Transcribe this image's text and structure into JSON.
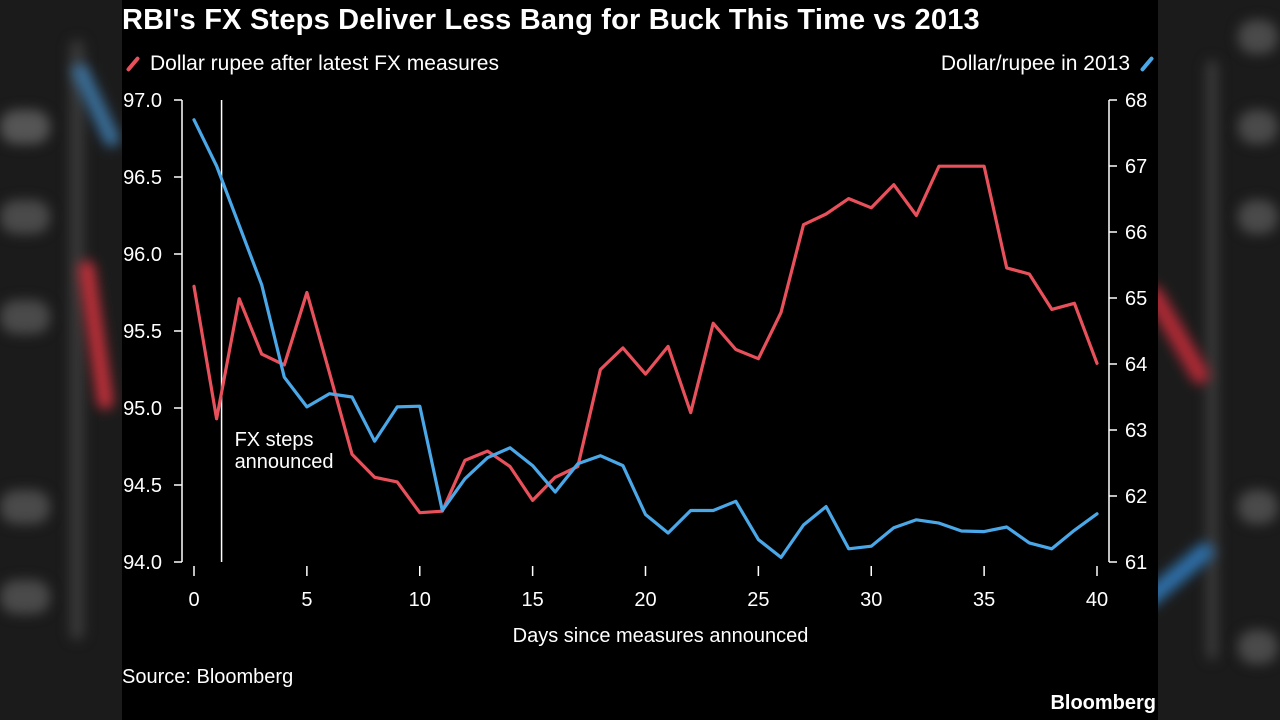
{
  "header": {
    "title": "RBI's FX Steps Deliver Less Bang for Buck This Time vs 2013"
  },
  "footer": {
    "source": "Source: Bloomberg",
    "brand": "Bloomberg"
  },
  "colors": {
    "background": "#000000",
    "series_red": "#e8505b",
    "series_blue": "#4aa8e8",
    "text": "#ffffff"
  },
  "chart_data": {
    "type": "line",
    "xlabel": "Days since measures announced",
    "xlim": [
      0,
      40
    ],
    "xticks": [
      0,
      5,
      10,
      15,
      20,
      25,
      30,
      35,
      40
    ],
    "left_axis": {
      "ylim": [
        94.0,
        97.0
      ],
      "ticks": [
        "94.0",
        "94.5",
        "95.0",
        "95.5",
        "96.0",
        "96.5",
        "97.0"
      ]
    },
    "right_axis": {
      "ylim": [
        61,
        68
      ],
      "ticks": [
        "61",
        "62",
        "63",
        "64",
        "65",
        "66",
        "67",
        "68"
      ]
    },
    "grid": false,
    "legend_placement": "top",
    "annotation": {
      "x": 1,
      "lines": [
        "FX steps",
        "announced"
      ]
    },
    "series": [
      {
        "name": "Dollar rupee after latest FX measures",
        "axis": "left",
        "color": "#e8505b",
        "x": [
          0,
          1,
          2,
          3,
          4,
          5,
          6,
          7,
          8,
          9,
          10,
          11,
          12,
          13,
          14,
          15,
          16,
          17,
          18,
          19,
          20,
          21,
          22,
          23,
          24,
          25,
          26,
          27,
          28,
          29,
          30,
          31,
          32,
          33,
          34,
          35,
          36,
          37,
          38,
          39,
          40
        ],
        "values": [
          95.79,
          94.93,
          95.71,
          95.35,
          95.28,
          95.75,
          95.23,
          94.7,
          94.55,
          94.52,
          94.32,
          94.33,
          94.66,
          94.72,
          94.62,
          94.4,
          94.55,
          94.62,
          95.25,
          95.39,
          95.22,
          95.4,
          94.97,
          95.55,
          95.38,
          95.32,
          95.62,
          96.19,
          96.26,
          96.36,
          96.3,
          96.45,
          96.25,
          96.57,
          96.57,
          96.57,
          95.91,
          95.87,
          95.64,
          95.68,
          95.29
        ]
      },
      {
        "name": "Dollar/rupee in 2013",
        "axis": "right",
        "color": "#4aa8e8",
        "x": [
          0,
          1,
          2,
          3,
          4,
          5,
          6,
          7,
          8,
          9,
          10,
          11,
          12,
          13,
          14,
          15,
          16,
          17,
          18,
          19,
          20,
          21,
          22,
          23,
          24,
          25,
          26,
          27,
          28,
          29,
          30,
          31,
          32,
          33,
          34,
          35,
          36,
          37,
          38,
          39,
          40
        ],
        "values": [
          67.7,
          67.0,
          66.1,
          65.2,
          63.8,
          63.35,
          63.55,
          63.5,
          62.83,
          63.35,
          63.36,
          61.78,
          62.26,
          62.58,
          62.73,
          62.46,
          62.06,
          62.49,
          62.61,
          62.46,
          61.72,
          61.44,
          61.78,
          61.78,
          61.92,
          61.34,
          61.07,
          61.56,
          61.84,
          61.2,
          61.24,
          61.52,
          61.64,
          61.59,
          61.47,
          61.46,
          61.53,
          61.29,
          61.2,
          61.48,
          61.73
        ]
      }
    ]
  }
}
